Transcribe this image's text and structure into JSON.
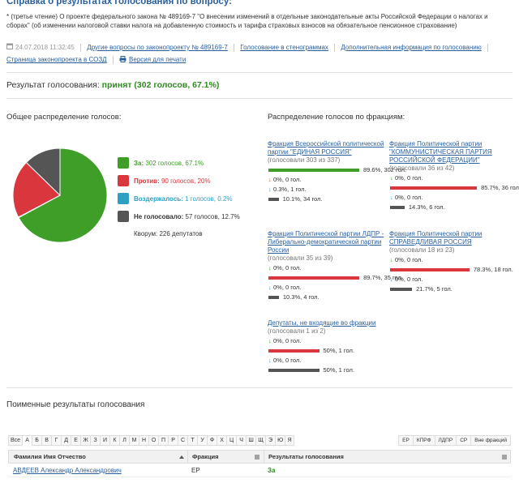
{
  "page": {
    "title": "Справка о результатах голосования по вопросу:",
    "description": "* (третье чтение) О проекте федерального закона № 489169-7 \"О внесении изменений в отдельные законодательные акты Российской Федерации о налогах и сборах\" (об изменении налоговой ставки налога на добавленную стоимость и тарифа страховых взносов на обязательное пенсионное страхование)",
    "datetime": "24.07.2018 11:32:45",
    "links": {
      "other_questions": "Другие вопросы по законопроекту № 489169-7",
      "transcripts": "Голосование в стенограммах",
      "additional_info": "Дополнительная информация по голосованию",
      "sozd_page": "Страница законопроекта в СОЗД",
      "print_version": "Версия для печати"
    }
  },
  "result": {
    "label": "Результат голосования:",
    "value": "принят (302 голосов, 67.1%)"
  },
  "overall": {
    "title": "Общее распределение голосов:",
    "colors": {
      "for": "#3f9e28",
      "against": "#d9363e",
      "abstain": "#2d9fc4",
      "absent": "#555555"
    },
    "pie_fractions": {
      "for": 0.671,
      "against": 0.2,
      "abstain": 0.002,
      "absent": 0.127
    },
    "legend": [
      {
        "key": "for",
        "name": "За:",
        "text": "302 голосов, 67.1%"
      },
      {
        "key": "against",
        "name": "Против:",
        "text": "90 голосов, 20%"
      },
      {
        "key": "abstain",
        "name": "Воздержалось:",
        "text": "1 голосов, 0.2%"
      },
      {
        "key": "absent",
        "name": "Не голосовало:",
        "text": "57 голосов, 12.7%"
      }
    ],
    "quorum": "Кворум: 226 депутатов"
  },
  "factions_title": "Распределение голосов по фракциям:",
  "factions": [
    {
      "name": "Фракция Всероссийской политической партии \"ЕДИНАЯ РОССИЯ\"",
      "voted": "(голосовали 303 из 337)",
      "bars": [
        {
          "kind": "for",
          "fraction": 0.896,
          "label": "89.6%, 302 гол."
        },
        {
          "kind": "against",
          "fraction": 0.0,
          "label": "0%, 0 гол."
        },
        {
          "kind": "abstain",
          "fraction": 0.003,
          "label": "0.3%, 1 гол."
        },
        {
          "kind": "absent",
          "fraction": 0.101,
          "label": "10.1%, 34 гол."
        }
      ]
    },
    {
      "name": "Фракция Политической партии \"КОММУНИСТИЧЕСКАЯ ПАРТИЯ РОССИЙСКОЙ ФЕДЕРАЦИИ\"",
      "voted": "(голосовали 36 из 42)",
      "bars": [
        {
          "kind": "for",
          "fraction": 0.0,
          "label": "0%, 0 гол."
        },
        {
          "kind": "against",
          "fraction": 0.857,
          "label": "85.7%, 36 гол."
        },
        {
          "kind": "abstain",
          "fraction": 0.0,
          "label": "0%, 0 гол."
        },
        {
          "kind": "absent",
          "fraction": 0.143,
          "label": "14.3%, 6 гол."
        }
      ]
    },
    {
      "name": "Фракция Политической партии ЛДПР - Либерально-демократической партии России",
      "voted": "(голосовали 35 из 39)",
      "bars": [
        {
          "kind": "for",
          "fraction": 0.0,
          "label": "0%, 0 гол."
        },
        {
          "kind": "against",
          "fraction": 0.897,
          "label": "89.7%, 35 гол."
        },
        {
          "kind": "abstain",
          "fraction": 0.0,
          "label": "0%, 0 гол."
        },
        {
          "kind": "absent",
          "fraction": 0.103,
          "label": "10.3%, 4 гол."
        }
      ]
    },
    {
      "name": "Фракция Политической партии СПРАВЕДЛИВАЯ РОССИЯ",
      "voted": "(голосовали 18 из 23)",
      "bars": [
        {
          "kind": "for",
          "fraction": 0.0,
          "label": "0%, 0 гол."
        },
        {
          "kind": "against",
          "fraction": 0.783,
          "label": "78.3%, 18 гол."
        },
        {
          "kind": "abstain",
          "fraction": 0.0,
          "label": "0%, 0 гол."
        },
        {
          "kind": "absent",
          "fraction": 0.217,
          "label": "21.7%, 5 гол."
        }
      ]
    },
    {
      "name": "Депутаты, не входящие во фракции",
      "voted": "(голосовали 1 из 2)",
      "bars": [
        {
          "kind": "for",
          "fraction": 0.0,
          "label": "0%, 0 гол."
        },
        {
          "kind": "against",
          "fraction": 0.5,
          "label": "50%, 1 гол."
        },
        {
          "kind": "abstain",
          "fraction": 0.0,
          "label": "0%, 0 гол."
        },
        {
          "kind": "absent",
          "fraction": 0.5,
          "label": "50%, 1 гол."
        }
      ]
    }
  ],
  "names": {
    "title": "Поименные результаты голосования",
    "alphabet": [
      "Все",
      "А",
      "Б",
      "В",
      "Г",
      "Д",
      "Е",
      "Ж",
      "З",
      "И",
      "К",
      "Л",
      "М",
      "Н",
      "О",
      "П",
      "Р",
      "С",
      "Т",
      "У",
      "Ф",
      "Х",
      "Ц",
      "Ч",
      "Ш",
      "Щ",
      "Э",
      "Ю",
      "Я"
    ],
    "active_letter": "А",
    "faction_filters": [
      "ЕР",
      "КПРФ",
      "ЛДПР",
      "СР",
      "Вне фракций"
    ],
    "columns": [
      "Фамилия Имя Отчество",
      "Фракция",
      "Результаты голосования"
    ],
    "rows": [
      {
        "name": "АВДЕЕВ Александр Александрович",
        "faction": "ЕР",
        "result": "За"
      }
    ]
  }
}
